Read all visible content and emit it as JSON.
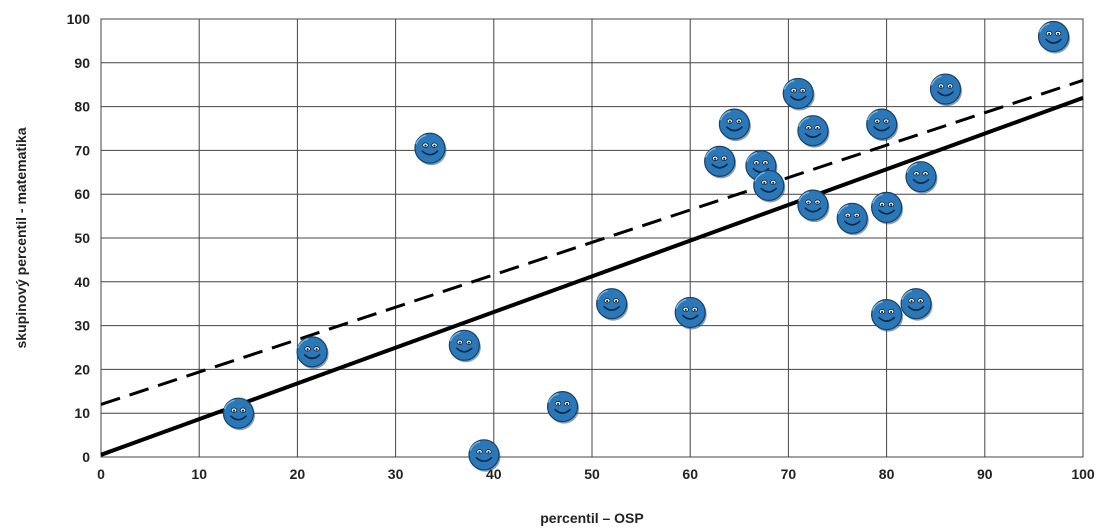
{
  "chart_data": {
    "type": "scatter",
    "title": "",
    "xlabel": "percentil – OSP",
    "ylabel": "skupinový percentil - matematika",
    "xlim": [
      0,
      100
    ],
    "ylim": [
      0,
      100
    ],
    "x_ticks": [
      "0",
      "10",
      "20",
      "30",
      "40",
      "50",
      "60",
      "70",
      "80",
      "90",
      "100"
    ],
    "y_ticks": [
      "0",
      "10",
      "20",
      "30",
      "40",
      "50",
      "60",
      "70",
      "80",
      "90",
      "100"
    ],
    "grid": true,
    "marker": "smiley-face",
    "marker_color": "#2a78b8",
    "series": [
      {
        "points": [
          [
            14,
            10
          ],
          [
            21.5,
            24
          ],
          [
            33.5,
            70.5
          ],
          [
            37,
            25.5
          ],
          [
            39,
            0.5
          ],
          [
            47,
            11.5
          ],
          [
            52,
            35
          ],
          [
            60,
            33
          ],
          [
            63,
            67.5
          ],
          [
            64.5,
            76
          ],
          [
            67.2,
            66.5
          ],
          [
            68,
            62
          ],
          [
            71,
            83
          ],
          [
            72.5,
            74.5
          ],
          [
            72.5,
            57.5
          ],
          [
            76.5,
            54.5
          ],
          [
            79.5,
            76
          ],
          [
            80,
            57
          ],
          [
            80,
            32.5
          ],
          [
            83,
            35
          ],
          [
            83.5,
            64
          ],
          [
            86,
            84
          ],
          [
            97,
            96
          ]
        ]
      }
    ],
    "lines": [
      {
        "style": "solid",
        "color": "#000000",
        "points": [
          [
            0,
            0.5
          ],
          [
            100,
            82
          ]
        ]
      },
      {
        "style": "dashed",
        "color": "#000000",
        "points": [
          [
            0,
            12
          ],
          [
            100,
            86
          ]
        ]
      }
    ]
  }
}
